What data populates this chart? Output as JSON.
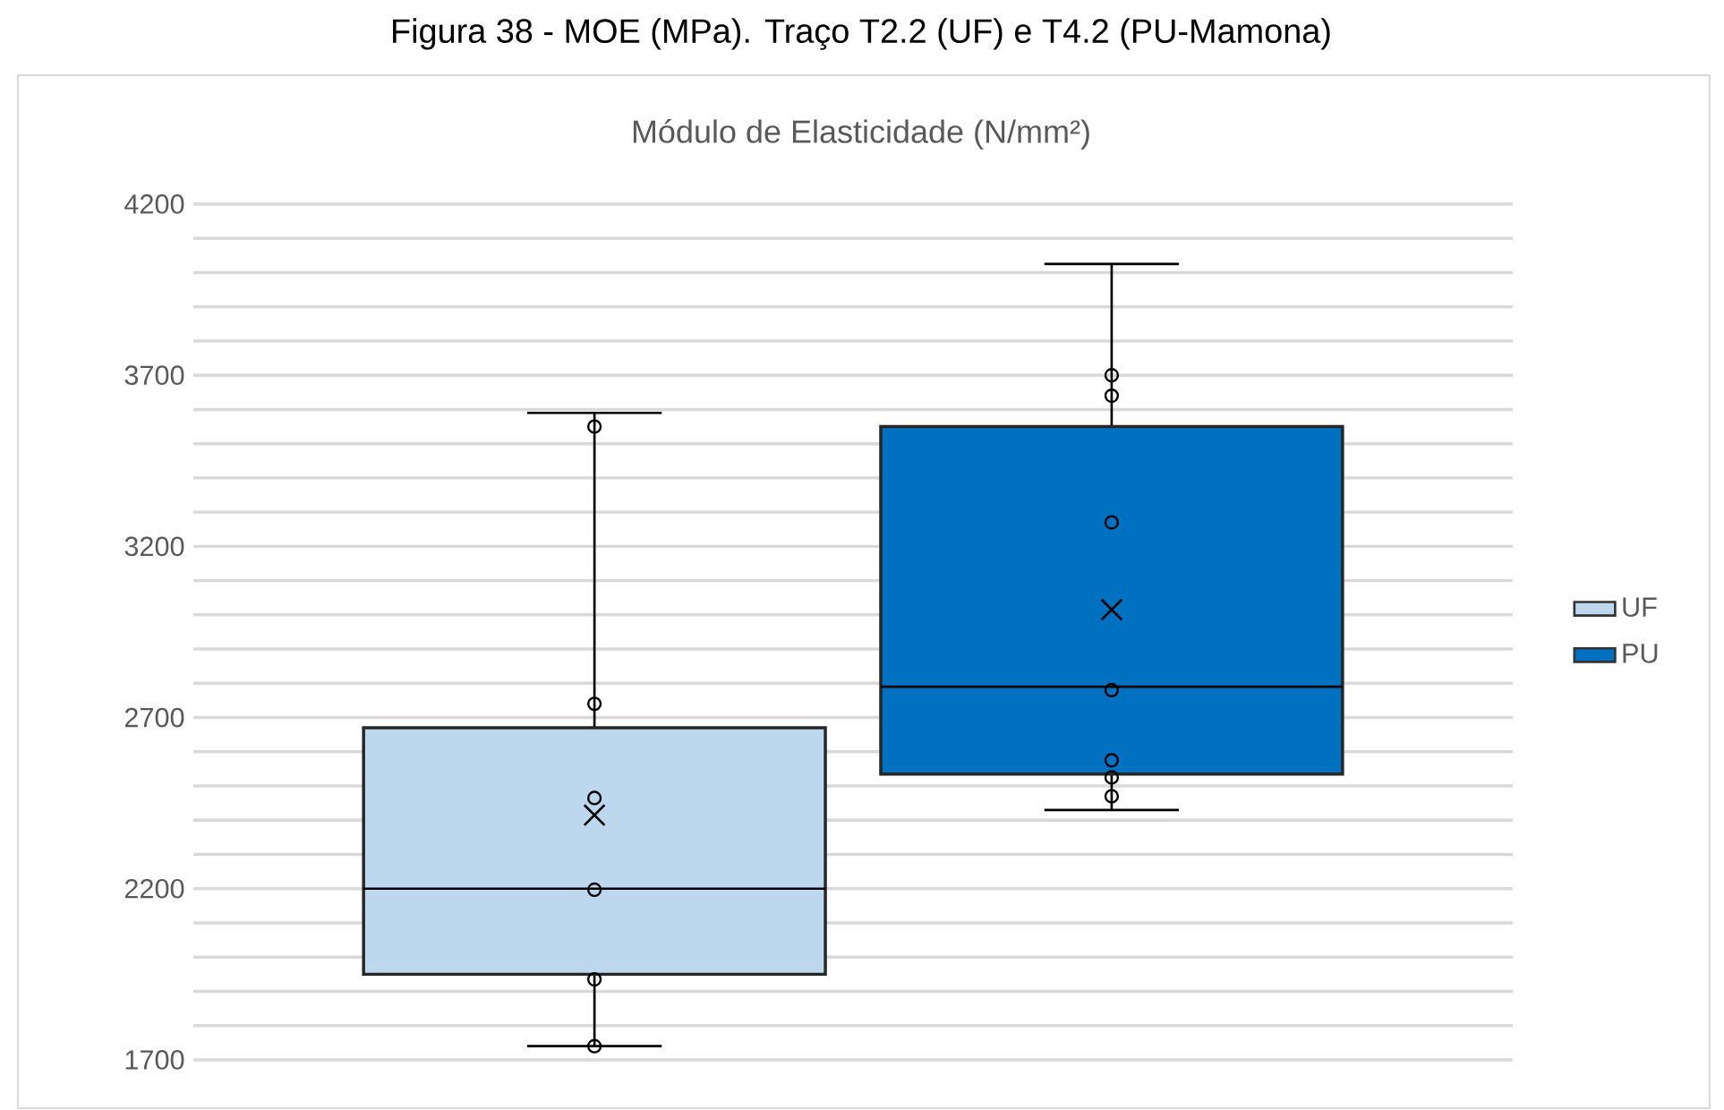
{
  "chart_data": {
    "type": "box",
    "title": "Figura 38 - MOE (MPa). Traço T2.2 (UF) e T4.2 (PU-Mamona)",
    "subtitle": "Módulo de Elasticidade (N/mm²)",
    "categories": [
      null
    ],
    "series": [
      {
        "name": "UF",
        "color": "#bdd7ee",
        "boxes": [
          {
            "low": 1740,
            "q1": 1950,
            "median": 2200,
            "q3": 2670,
            "high": 3590,
            "mean": 2415,
            "outliers": [
              1740,
              1935,
              2197,
              2465,
              2740,
              3550
            ]
          }
        ]
      },
      {
        "name": "PU",
        "color": "#0070c0",
        "boxes": [
          {
            "low": 2430,
            "q1": 2535,
            "median": 2790,
            "q3": 3550,
            "high": 4025,
            "mean": 3015,
            "outliers": [
              2470,
              2525,
              2575,
              2780,
              3270,
              3640,
              3700
            ]
          }
        ]
      }
    ],
    "ylim": [
      1700,
      4200
    ],
    "yticks": [
      1700,
      {
        "value": 1800,
        "label": null
      },
      {
        "value": 1900,
        "label": null
      },
      {
        "value": 2000,
        "label": null
      },
      {
        "value": 2100,
        "label": null
      },
      2200,
      {
        "value": 2300,
        "label": null
      },
      {
        "value": 2400,
        "label": null
      },
      {
        "value": 2500,
        "label": null
      },
      {
        "value": 2600,
        "label": null
      },
      2700,
      {
        "value": 2800,
        "label": null
      },
      {
        "value": 2900,
        "label": null
      },
      {
        "value": 3000,
        "label": null
      },
      {
        "value": 3100,
        "label": null
      },
      3200,
      {
        "value": 3300,
        "label": null
      },
      {
        "value": 3400,
        "label": null
      },
      {
        "value": 3500,
        "label": null
      },
      {
        "value": 3600,
        "label": null
      },
      3700,
      {
        "value": 3800,
        "label": null
      },
      {
        "value": 3900,
        "label": null
      },
      {
        "value": 4000,
        "label": null
      },
      {
        "value": 4100,
        "label": null
      },
      4200
    ],
    "grid": "y",
    "legend": "right",
    "marker": "circle"
  }
}
